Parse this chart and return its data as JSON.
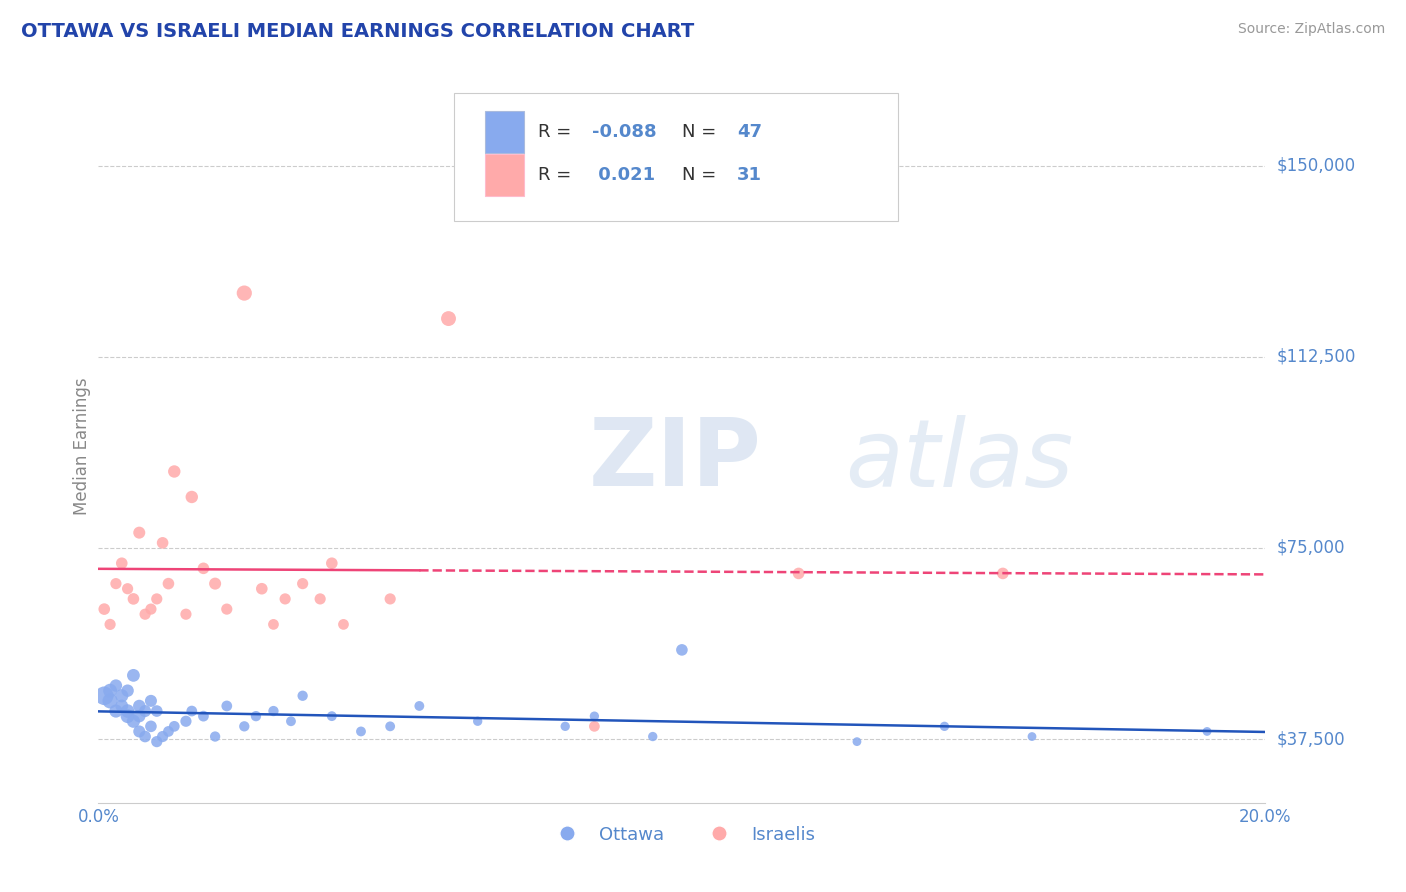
{
  "title": "OTTAWA VS ISRAELI MEDIAN EARNINGS CORRELATION CHART",
  "source": "Source: ZipAtlas.com",
  "ylabel": "Median Earnings",
  "xlim": [
    0.0,
    0.2
  ],
  "ylim": [
    25000,
    165000
  ],
  "yticks": [
    37500,
    75000,
    112500,
    150000
  ],
  "ytick_labels": [
    "$37,500",
    "$75,000",
    "$112,500",
    "$150,000"
  ],
  "xticks": [
    0.0,
    0.05,
    0.1,
    0.15,
    0.2
  ],
  "xtick_labels": [
    "0.0%",
    "",
    "",
    "",
    "20.0%"
  ],
  "background_color": "#ffffff",
  "grid_color": "#cccccc",
  "ottawa_color": "#88aaee",
  "israeli_color": "#ffaaaa",
  "ottawa_R": -0.088,
  "ottawa_N": 47,
  "israeli_R": 0.021,
  "israeli_N": 31,
  "ottawa_line_color": "#2255bb",
  "israeli_line_color": "#ee4477",
  "title_color": "#2244aa",
  "axis_label_color": "#5588cc",
  "watermark_zip": "ZIP",
  "watermark_atlas": "atlas",
  "ottawa_x": [
    0.001,
    0.002,
    0.002,
    0.003,
    0.003,
    0.004,
    0.004,
    0.005,
    0.005,
    0.005,
    0.006,
    0.006,
    0.007,
    0.007,
    0.007,
    0.008,
    0.008,
    0.009,
    0.009,
    0.01,
    0.01,
    0.011,
    0.012,
    0.013,
    0.015,
    0.016,
    0.018,
    0.02,
    0.022,
    0.025,
    0.027,
    0.03,
    0.033,
    0.035,
    0.04,
    0.045,
    0.05,
    0.055,
    0.065,
    0.08,
    0.085,
    0.095,
    0.1,
    0.13,
    0.145,
    0.16,
    0.19
  ],
  "ottawa_y": [
    46000,
    45000,
    47000,
    43000,
    48000,
    44000,
    46000,
    42000,
    43000,
    47000,
    41000,
    50000,
    42000,
    39000,
    44000,
    38000,
    43000,
    40000,
    45000,
    37000,
    43000,
    38000,
    39000,
    40000,
    41000,
    43000,
    42000,
    38000,
    44000,
    40000,
    42000,
    43000,
    41000,
    46000,
    42000,
    39000,
    40000,
    44000,
    41000,
    40000,
    42000,
    38000,
    55000,
    37000,
    40000,
    38000,
    39000
  ],
  "ottawa_sizes": [
    180,
    120,
    100,
    90,
    80,
    85,
    90,
    100,
    95,
    80,
    90,
    85,
    80,
    75,
    80,
    70,
    75,
    70,
    75,
    65,
    70,
    65,
    60,
    60,
    65,
    60,
    60,
    55,
    60,
    55,
    55,
    55,
    50,
    55,
    50,
    50,
    50,
    50,
    45,
    45,
    45,
    45,
    70,
    40,
    45,
    40,
    40
  ],
  "israeli_x": [
    0.001,
    0.002,
    0.003,
    0.004,
    0.005,
    0.006,
    0.007,
    0.008,
    0.009,
    0.01,
    0.011,
    0.012,
    0.013,
    0.015,
    0.016,
    0.018,
    0.02,
    0.022,
    0.025,
    0.028,
    0.03,
    0.032,
    0.035,
    0.038,
    0.04,
    0.042,
    0.05,
    0.06,
    0.085,
    0.12,
    0.155
  ],
  "israeli_y": [
    63000,
    60000,
    68000,
    72000,
    67000,
    65000,
    78000,
    62000,
    63000,
    65000,
    76000,
    68000,
    90000,
    62000,
    85000,
    71000,
    68000,
    63000,
    125000,
    67000,
    60000,
    65000,
    68000,
    65000,
    72000,
    60000,
    65000,
    120000,
    40000,
    70000,
    70000
  ],
  "israeli_sizes": [
    70,
    65,
    65,
    70,
    65,
    70,
    75,
    65,
    65,
    65,
    70,
    70,
    80,
    65,
    80,
    70,
    75,
    65,
    120,
    70,
    60,
    65,
    65,
    65,
    70,
    60,
    65,
    115,
    60,
    70,
    70
  ]
}
